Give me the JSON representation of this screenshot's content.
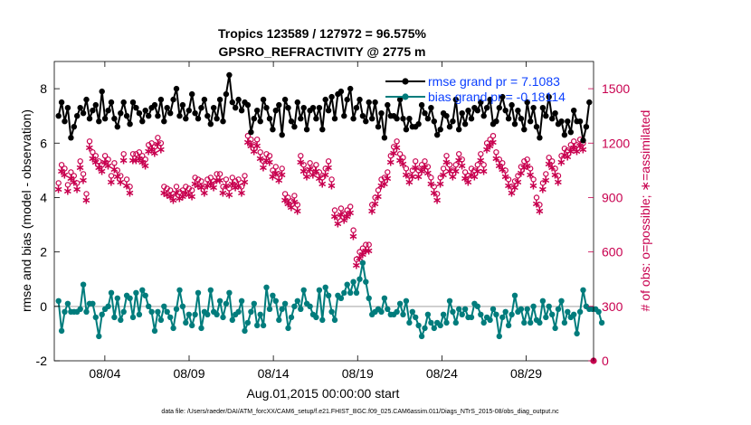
{
  "chart_data": {
    "type": "line",
    "title_line1": "Tropics 123589 / 127972 = 96.575%",
    "title_line2": "GPSRO_REFRACTIVITY @ 2775 m",
    "xlabel": "Aug.01,2015 00:00:00 start",
    "ylabel_left": "rmse and bias (model - observation)",
    "ylabel_right": "# of obs: o=possible; ∗=assimilated",
    "x_tick_labels": [
      "08/04",
      "08/09",
      "08/14",
      "08/19",
      "08/24",
      "08/29"
    ],
    "x_tick_days": [
      4,
      9,
      14,
      19,
      24,
      29
    ],
    "xlim_days": [
      1,
      33
    ],
    "ylim_left": [
      -2,
      9
    ],
    "y_left_ticks": [
      "-2",
      "0",
      "2",
      "4",
      "6",
      "8"
    ],
    "ylim_right": [
      0,
      1650
    ],
    "y_right_ticks": [
      "0",
      "300",
      "600",
      "900",
      "1200",
      "1500"
    ],
    "footnote": "data file: /Users/raeder/DAI/ATM_forcXX/CAM6_setup/f.e21.FHIST_BGC.f09_025.CAM6assim.011/Diags_NTrS_2015-08/obs_diag_output.nc",
    "colors": {
      "rmse": "#000000",
      "bias": "#007c7c",
      "counts": "#c8004f",
      "zero_line": "#c0c0c0"
    },
    "series": [
      {
        "name": "rmse",
        "legend": "rmse grand pr = 7.1083",
        "values": [
          7.0,
          7.5,
          6.8,
          7.3,
          6.2,
          6.6,
          7.0,
          7.3,
          7.1,
          7.6,
          6.9,
          7.2,
          7.4,
          6.8,
          7.9,
          6.9,
          7.2,
          7.5,
          6.9,
          6.6,
          7.1,
          7.5,
          7.0,
          6.7,
          7.5,
          7.3,
          7.1,
          6.8,
          7.2,
          7.0,
          7.3,
          7.4,
          7.0,
          7.6,
          6.8,
          7.3,
          7.1,
          7.6,
          8.0,
          7.0,
          7.4,
          6.9,
          7.2,
          7.8,
          7.1,
          6.9,
          7.3,
          7.6,
          7.0,
          6.7,
          7.3,
          6.9,
          7.6,
          6.8,
          7.8,
          8.5,
          7.5,
          7.3,
          7.6,
          7.2,
          7.5,
          7.4,
          6.4,
          6.9,
          7.2,
          6.8,
          7.6,
          7.3,
          6.9,
          6.5,
          7.2,
          7.4,
          6.3,
          7.6,
          7.3,
          6.8,
          6.6,
          7.5,
          6.9,
          7.3,
          6.5,
          7.2,
          7.3,
          6.9,
          7.3,
          6.5,
          7.6,
          7.2,
          7.7,
          6.9,
          7.8,
          7.9,
          7.0,
          7.6,
          8.0,
          6.9,
          7.3,
          7.6,
          7.0,
          6.8,
          7.5,
          6.9,
          7.5,
          6.6,
          7.1,
          6.2,
          7.4,
          7.0,
          7.0,
          6.9,
          7.6,
          6.9,
          6.5,
          6.9,
          6.6,
          6.6,
          6.7,
          7.4,
          7.1,
          6.9,
          7.3,
          6.8,
          6.3,
          6.5,
          7.1,
          7.0,
          6.6,
          6.8,
          7.6,
          6.5,
          7.1,
          6.7,
          7.2,
          6.9,
          7.3,
          7.2,
          7.5,
          7.0,
          7.3,
          7.6,
          6.7,
          6.8,
          7.3,
          7.7,
          7.2,
          6.9,
          7.4,
          6.7,
          7.2,
          6.9,
          6.5,
          7.5,
          6.8,
          7.3,
          6.6,
          6.2,
          7.3,
          7.0,
          7.7,
          6.9,
          7.1,
          6.7,
          6.8,
          6.3,
          6.8,
          6.4,
          7.2,
          6.8,
          6.8,
          6.1,
          6.6,
          7.5
        ]
      },
      {
        "name": "bias",
        "legend": "bias grand pr = -0.18114",
        "values": [
          0.2,
          -0.9,
          -0.2,
          0.1,
          -0.2,
          -0.2,
          -0.2,
          -0.1,
          0.8,
          -0.2,
          0.1,
          0.1,
          -0.4,
          -1.1,
          -0.3,
          -0.1,
          0.0,
          0.5,
          -0.4,
          0.3,
          -0.5,
          -0.2,
          0.4,
          0.3,
          -0.4,
          0.5,
          -0.3,
          0.6,
          0.4,
          0.0,
          -0.2,
          -0.9,
          -0.2,
          -0.5,
          0.0,
          -0.2,
          -0.4,
          -0.8,
          -0.1,
          0.6,
          0.0,
          -0.6,
          -0.3,
          -0.7,
          -0.3,
          0.5,
          -0.8,
          -0.2,
          -0.3,
          0.6,
          -0.2,
          -0.3,
          0.2,
          -0.4,
          0.1,
          0.5,
          -0.5,
          -0.3,
          -0.2,
          0.2,
          -0.9,
          -0.6,
          -0.2,
          0.1,
          -0.7,
          -0.3,
          -0.7,
          0.7,
          -0.1,
          0.4,
          0.2,
          -0.5,
          -0.1,
          0.1,
          -0.8,
          -0.4,
          0.0,
          0.2,
          -0.1,
          0.6,
          0.1,
          0.0,
          -0.3,
          -0.4,
          0.6,
          -0.5,
          0.7,
          0.4,
          -0.2,
          -0.5,
          0.4,
          0.3,
          0.5,
          0.8,
          0.5,
          0.9,
          0.5,
          1.0,
          1.6,
          0.9,
          0.3,
          -0.3,
          -0.2,
          -0.1,
          -0.2,
          0.3,
          -0.1,
          -0.3,
          -0.3,
          -0.2,
          0.1,
          -0.3,
          0.2,
          -0.6,
          -0.2,
          -0.4,
          -0.7,
          -1.1,
          -0.8,
          -0.3,
          -0.6,
          -0.8,
          -0.6,
          -0.7,
          -0.3,
          -0.6,
          0.2,
          -0.2,
          -0.6,
          -0.1,
          -0.3,
          -0.1,
          -0.4,
          -0.4,
          0.1,
          0.0,
          -0.3,
          -0.6,
          -0.4,
          -0.5,
          -0.1,
          -0.3,
          -1.1,
          -0.4,
          -0.2,
          -0.7,
          -0.3,
          0.4,
          -0.2,
          -0.1,
          -0.6,
          -0.1,
          -0.6,
          0.0,
          -0.5,
          -0.6,
          0.2,
          -0.4,
          0.0,
          -0.3,
          -0.8,
          -0.1,
          0.2,
          -0.6,
          -0.2,
          -0.4,
          -0.3,
          -1.0,
          -0.2,
          0.6,
          0.0,
          -0.1,
          -0.1,
          -0.1,
          -0.2,
          -0.6
        ]
      },
      {
        "name": "obs_possible",
        "values": [
          980,
          1080,
          1060,
          970,
          1040,
          1020,
          980,
          1100,
          1030,
          920,
          1210,
          1150,
          1130,
          1100,
          1080,
          1130,
          1110,
          1020,
          1090,
          1050,
          1020,
          1140,
          1000,
          960,
          1140,
          1140,
          1150,
          1130,
          1110,
          1190,
          1200,
          1180,
          1230,
          1200,
          960,
          950,
          940,
          920,
          960,
          930,
          940,
          960,
          950,
          940,
          1010,
          1000,
          990,
          960,
          1000,
          1010,
          990,
          1030,
          1030,
          960,
          1000,
          950,
          1010,
          990,
          1000,
          960,
          1020,
          1240,
          1220,
          1190,
          1220,
          1150,
          1100,
          1140,
          1130,
          1050,
          1070,
          1030,
          1060,
          920,
          900,
          880,
          910,
          860,
          1130,
          1080,
          1050,
          1090,
          1060,
          1080,
          1040,
          1010,
          1060,
          1100,
          1000,
          830,
          790,
          840,
          810,
          830,
          850,
          720,
          560,
          600,
          620,
          640,
          640,
          860,
          900,
          940,
          1000,
          1010,
          1040,
          1130,
          1180,
          1210,
          1140,
          1120,
          1060,
          1020,
          1050,
          1100,
          1050,
          1080,
          1100,
          1070,
          1010,
          960,
          920,
          1010,
          1060,
          1130,
          1080,
          1050,
          1080,
          1140,
          1110,
          1040,
          1020,
          1060,
          1050,
          1080,
          1140,
          1080,
          1200,
          1220,
          1240,
          1150,
          1110,
          1090,
          1050,
          1000,
          960,
          990,
          1020,
          1070,
          1100,
          1110,
          1060,
          1000,
          900,
          860,
          980,
          1030,
          1120,
          1100,
          1060,
          1020,
          1130,
          1170,
          1160,
          1190,
          1210,
          1190,
          1220,
          1200
        ]
      },
      {
        "name": "obs_assimilated",
        "values": [
          950,
          1050,
          1030,
          940,
          1010,
          990,
          950,
          1070,
          1000,
          890,
          1180,
          1120,
          1100,
          1070,
          1050,
          1100,
          1080,
          990,
          1060,
          1020,
          990,
          1110,
          970,
          930,
          1110,
          1110,
          1120,
          1100,
          1080,
          1160,
          1170,
          1150,
          1200,
          1170,
          930,
          920,
          910,
          890,
          930,
          900,
          910,
          930,
          920,
          910,
          980,
          970,
          960,
          930,
          970,
          980,
          960,
          1000,
          1000,
          930,
          970,
          920,
          980,
          960,
          970,
          930,
          990,
          1210,
          1190,
          1160,
          1190,
          1120,
          1070,
          1110,
          1100,
          1020,
          1040,
          1000,
          1030,
          890,
          870,
          850,
          880,
          830,
          1100,
          1050,
          1020,
          1060,
          1030,
          1050,
          1010,
          980,
          1030,
          1070,
          970,
          800,
          760,
          810,
          780,
          800,
          820,
          690,
          530,
          570,
          590,
          610,
          610,
          830,
          870,
          910,
          970,
          980,
          1010,
          1100,
          1150,
          1180,
          1110,
          1090,
          1030,
          990,
          1020,
          1070,
          1020,
          1050,
          1070,
          1040,
          980,
          930,
          890,
          980,
          1030,
          1100,
          1050,
          1020,
          1050,
          1110,
          1080,
          1010,
          990,
          1030,
          1020,
          1050,
          1110,
          1050,
          1170,
          1190,
          1210,
          1120,
          1080,
          1060,
          1020,
          970,
          930,
          960,
          990,
          1040,
          1070,
          1080,
          1030,
          970,
          870,
          830,
          950,
          1000,
          1090,
          1070,
          1030,
          990,
          1100,
          1140,
          1130,
          1160,
          1180,
          1160,
          1190,
          1170
        ]
      }
    ]
  }
}
